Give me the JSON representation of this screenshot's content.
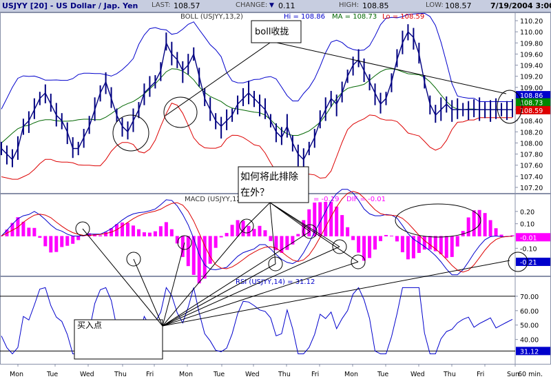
{
  "header": {
    "title": "USJYY [20] - US Dollar / Jap. Yen",
    "last_label": "LAST:",
    "last": "108.57",
    "change_label": "CHANGE:",
    "change": "0.11",
    "high_label": "HIGH:",
    "high": "108.85",
    "low_label": "LOW:",
    "low": "108.57",
    "date": "7/19/2004 3:00"
  },
  "colors": {
    "price": "#000080",
    "upper_band": "#0000cc",
    "lower_band": "#dd0000",
    "ma": "#006600",
    "macd_hist": "#ff00ff",
    "signal": "#dd0000",
    "rsi": "#0000cc"
  },
  "chart_data": [
    {
      "type": "line",
      "panel": "price",
      "legend": {
        "boll": "BOLL (USJYY,13,2)",
        "hi": "Hi = 108.86",
        "ma": "MA = 108.73",
        "lo": "Lo = 108.59"
      },
      "ylim": [
        107.15,
        110.25
      ],
      "yticks": [
        "110.20",
        "110.00",
        "109.80",
        "109.60",
        "109.40",
        "109.20",
        "109.00",
        "108.80",
        "108.60",
        "108.40",
        "108.20",
        "108.00",
        "107.80",
        "107.60",
        "107.40",
        "107.20"
      ],
      "value_tags": [
        {
          "value": "108.86",
          "color": "#0000cc"
        },
        {
          "value": "108.73",
          "color": "#008800"
        },
        {
          "value": "108.59",
          "color": "#dd0000"
        }
      ],
      "x": [
        0,
        1,
        2,
        3,
        4,
        5,
        6,
        7,
        8,
        9,
        10,
        11,
        12,
        13,
        14,
        15,
        16,
        17,
        18,
        19,
        20,
        21,
        22,
        23,
        24,
        25,
        26,
        27,
        28,
        29,
        30,
        31,
        32,
        33,
        34,
        35,
        36,
        37,
        38,
        39,
        40,
        41,
        42,
        43,
        44,
        45,
        46,
        47,
        48,
        49,
        50,
        51,
        52,
        53,
        54,
        55,
        56,
        57,
        58,
        59,
        60,
        61,
        62,
        63,
        64,
        65,
        66,
        67,
        68,
        69,
        70,
        71,
        72,
        73,
        74,
        75,
        76,
        77,
        78,
        79,
        80,
        81,
        82,
        83,
        84,
        85,
        86,
        87,
        88,
        89,
        90,
        91,
        92,
        93
      ],
      "series": [
        {
          "name": "Close",
          "values": [
            107.9,
            107.8,
            107.7,
            107.9,
            108.3,
            108.4,
            108.6,
            108.8,
            108.9,
            108.7,
            108.5,
            108.4,
            108.2,
            107.9,
            107.9,
            108.1,
            108.3,
            108.6,
            108.9,
            109.1,
            108.8,
            108.5,
            108.3,
            108.2,
            108.4,
            108.6,
            108.9,
            109.0,
            109.1,
            109.3,
            109.8,
            109.6,
            109.5,
            109.3,
            109.4,
            109.6,
            109.2,
            108.8,
            108.6,
            108.4,
            108.3,
            108.4,
            108.5,
            108.7,
            108.8,
            108.9,
            108.8,
            108.7,
            108.6,
            108.4,
            108.2,
            108.1,
            108.3,
            108.0,
            107.8,
            107.7,
            107.9,
            108.1,
            108.4,
            108.6,
            108.8,
            108.7,
            108.9,
            109.2,
            109.4,
            109.5,
            109.3,
            109.1,
            108.9,
            108.7,
            108.8,
            109.1,
            109.5,
            109.8,
            110.0,
            109.9,
            109.6,
            109.1,
            108.7,
            108.5,
            108.6,
            108.7,
            108.6,
            108.6,
            108.6,
            108.6,
            108.6,
            108.6,
            108.6,
            108.6,
            108.6,
            108.6,
            108.6,
            108.6
          ]
        }
      ],
      "annotations": [
        {
          "text": "boll收拢"
        }
      ]
    },
    {
      "type": "line",
      "panel": "macd",
      "legend": {
        "macd": "MACD (USJYY,12,2",
        "diff": "= -0.19",
        "dif": "DIF = -0.01"
      },
      "ylim": [
        -0.3,
        0.3
      ],
      "yticks": [
        "0.20",
        "0.10",
        "-0.10"
      ],
      "value_tags": [
        {
          "value": "-0.01",
          "color": "#ff00ff"
        },
        {
          "value": "-0.21",
          "color": "#0000cc"
        }
      ],
      "annotations": [
        {
          "text": "如何将此排除在外？"
        }
      ]
    },
    {
      "type": "line",
      "panel": "rsi",
      "legend": {
        "rsi": "RSI (USJYY,14) = 31.12"
      },
      "ylim": [
        25,
        80
      ],
      "yticks": [
        "70.00",
        "60.00",
        "50.00",
        "40.00"
      ],
      "value_tags": [
        {
          "value": "31.12",
          "color": "#0000cc"
        }
      ],
      "annotations": [
        {
          "text": "买入点"
        }
      ]
    }
  ],
  "x_axis": {
    "days": [
      "Mon",
      "Tue",
      "Wed",
      "Thu",
      "Fri",
      "Mon",
      "Tue",
      "Wed",
      "Thu",
      "Fri",
      "Mon",
      "Tue",
      "Wed",
      "Thu",
      "Fri",
      "Sun"
    ],
    "interval": "60 min."
  }
}
